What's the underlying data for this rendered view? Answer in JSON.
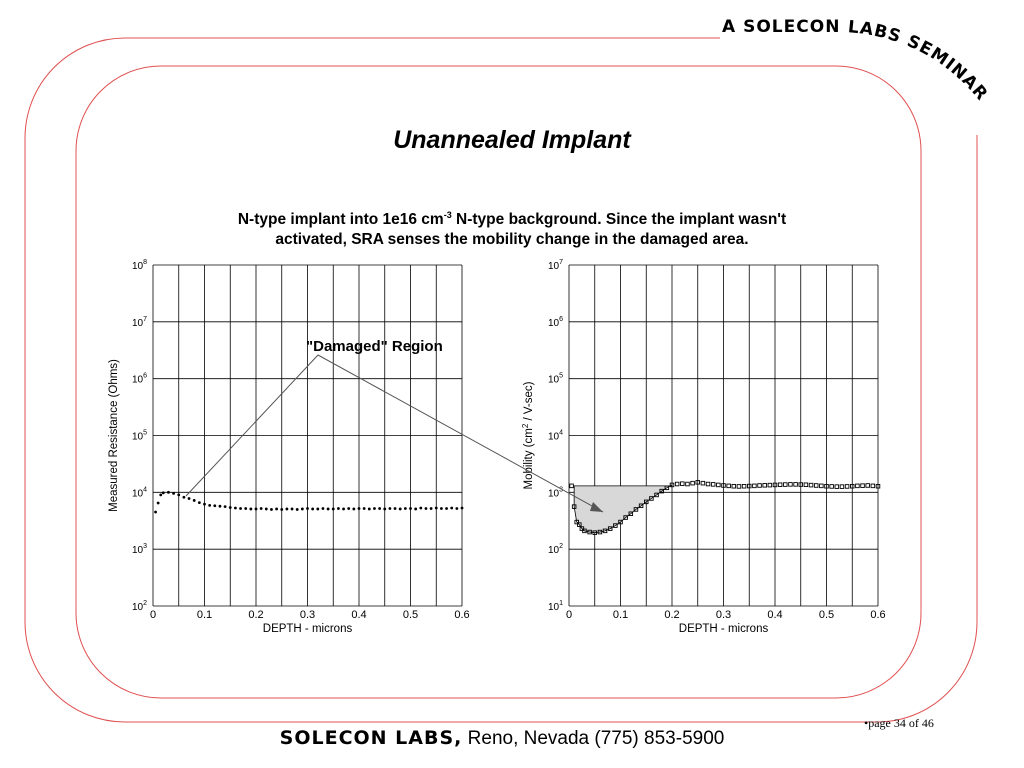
{
  "header": {
    "seminar_banner": "A SOLECON LABS SEMINAR"
  },
  "slide": {
    "title": "Unannealed Implant",
    "subtitle_line1_a": "N-type implant into 1e16 cm",
    "subtitle_line1_sup": "-3",
    "subtitle_line1_b": " N-type background. Since the implant wasn't",
    "subtitle_line2": "activated, SRA senses the mobility change in the damaged area.",
    "annotation": "\"Damaged\" Region"
  },
  "colors": {
    "frame": "#e05050",
    "region_fill": "#d8d8d8",
    "grid": "#000000"
  },
  "chart_data": [
    {
      "type": "scatter",
      "xlabel": "DEPTH - microns",
      "ylabel": "Measured Resistance (Ohms)",
      "xlim": [
        0,
        0.6
      ],
      "ylim_log10": [
        2,
        8
      ],
      "y_scale": "log",
      "x_ticks": [
        "0",
        "0.1",
        "0.2",
        "0.3",
        "0.4",
        "0.5",
        "0.6"
      ],
      "y_tick_exponents": [
        "2",
        "3",
        "4",
        "5",
        "6",
        "7",
        "8"
      ],
      "grid": true,
      "series": [
        {
          "points": [
            [
              0.005,
              4500.0
            ],
            [
              0.01,
              6500.0
            ],
            [
              0.015,
              9000.0
            ],
            [
              0.02,
              9800.0
            ],
            [
              0.03,
              10000.0
            ],
            [
              0.04,
              9600.0
            ],
            [
              0.05,
              9000.0
            ],
            [
              0.06,
              8200.0
            ],
            [
              0.07,
              7800.0
            ],
            [
              0.08,
              7200.0
            ],
            [
              0.09,
              6600.0
            ],
            [
              0.1,
              6200.0
            ],
            [
              0.11,
              5900.0
            ],
            [
              0.12,
              5800.0
            ],
            [
              0.13,
              5700.0
            ],
            [
              0.14,
              5600.0
            ],
            [
              0.15,
              5400.0
            ],
            [
              0.16,
              5300.0
            ],
            [
              0.17,
              5200.0
            ],
            [
              0.18,
              5200.0
            ],
            [
              0.19,
              5100.0
            ],
            [
              0.2,
              5100.0
            ],
            [
              0.21,
              5200.0
            ],
            [
              0.22,
              5100.0
            ],
            [
              0.23,
              5000.0
            ],
            [
              0.24,
              5100.0
            ],
            [
              0.25,
              5000.0
            ],
            [
              0.26,
              5100.0
            ],
            [
              0.27,
              5100.0
            ],
            [
              0.28,
              5000.0
            ],
            [
              0.29,
              5100.0
            ],
            [
              0.3,
              5200.0
            ],
            [
              0.31,
              5100.0
            ],
            [
              0.32,
              5100.0
            ],
            [
              0.33,
              5200.0
            ],
            [
              0.34,
              5100.0
            ],
            [
              0.35,
              5100.0
            ],
            [
              0.36,
              5200.0
            ],
            [
              0.37,
              5100.0
            ],
            [
              0.38,
              5200.0
            ],
            [
              0.39,
              5100.0
            ],
            [
              0.4,
              5200.0
            ],
            [
              0.41,
              5200.0
            ],
            [
              0.42,
              5100.0
            ],
            [
              0.43,
              5200.0
            ],
            [
              0.44,
              5200.0
            ],
            [
              0.45,
              5100.0
            ],
            [
              0.46,
              5200.0
            ],
            [
              0.47,
              5200.0
            ],
            [
              0.48,
              5100.0
            ],
            [
              0.49,
              5200.0
            ],
            [
              0.5,
              5200.0
            ],
            [
              0.51,
              5100.0
            ],
            [
              0.52,
              5300.0
            ],
            [
              0.53,
              5200.0
            ],
            [
              0.54,
              5200.0
            ],
            [
              0.55,
              5300.0
            ],
            [
              0.56,
              5200.0
            ],
            [
              0.57,
              5200.0
            ],
            [
              0.58,
              5300.0
            ],
            [
              0.59,
              5200.0
            ],
            [
              0.6,
              5300.0
            ]
          ]
        }
      ]
    },
    {
      "type": "scatter",
      "xlabel": "DEPTH - microns",
      "ylabel_a": "Mobility (cm",
      "ylabel_sup": "2",
      "ylabel_b": " / V-sec)",
      "xlim": [
        0,
        0.6
      ],
      "ylim_log10": [
        1,
        7
      ],
      "y_scale": "log",
      "x_ticks": [
        "0",
        "0.1",
        "0.2",
        "0.3",
        "0.4",
        "0.5",
        "0.6"
      ],
      "y_tick_exponents": [
        "1",
        "2",
        "3",
        "4",
        "5",
        "6",
        "7"
      ],
      "grid": true,
      "shaded_region": {
        "x_range": [
          0.01,
          0.2
        ],
        "top_value": 1300,
        "bottom_min": 190
      },
      "series": [
        {
          "points": [
            [
              0.005,
              1300
            ],
            [
              0.01,
              560
            ],
            [
              0.015,
              300
            ],
            [
              0.02,
              270
            ],
            [
              0.025,
              230
            ],
            [
              0.03,
              210
            ],
            [
              0.04,
              200
            ],
            [
              0.05,
              195
            ],
            [
              0.06,
              200
            ],
            [
              0.07,
              210
            ],
            [
              0.08,
              230
            ],
            [
              0.09,
              260
            ],
            [
              0.1,
              300
            ],
            [
              0.11,
              360
            ],
            [
              0.12,
              420
            ],
            [
              0.13,
              500
            ],
            [
              0.14,
              580
            ],
            [
              0.15,
              680
            ],
            [
              0.16,
              780
            ],
            [
              0.17,
              900
            ],
            [
              0.18,
              1050
            ],
            [
              0.19,
              1200
            ],
            [
              0.2,
              1350
            ],
            [
              0.21,
              1400
            ],
            [
              0.22,
              1420
            ],
            [
              0.23,
              1400
            ],
            [
              0.24,
              1450
            ],
            [
              0.25,
              1500
            ],
            [
              0.26,
              1450
            ],
            [
              0.27,
              1400
            ],
            [
              0.28,
              1380
            ],
            [
              0.29,
              1350
            ],
            [
              0.3,
              1320
            ],
            [
              0.31,
              1300
            ],
            [
              0.32,
              1280
            ],
            [
              0.33,
              1270
            ],
            [
              0.34,
              1280
            ],
            [
              0.35,
              1290
            ],
            [
              0.36,
              1300
            ],
            [
              0.37,
              1320
            ],
            [
              0.38,
              1330
            ],
            [
              0.39,
              1340
            ],
            [
              0.4,
              1350
            ],
            [
              0.41,
              1360
            ],
            [
              0.42,
              1370
            ],
            [
              0.43,
              1380
            ],
            [
              0.44,
              1380
            ],
            [
              0.45,
              1370
            ],
            [
              0.46,
              1360
            ],
            [
              0.47,
              1340
            ],
            [
              0.48,
              1320
            ],
            [
              0.49,
              1300
            ],
            [
              0.5,
              1280
            ],
            [
              0.51,
              1270
            ],
            [
              0.52,
              1260
            ],
            [
              0.53,
              1260
            ],
            [
              0.54,
              1270
            ],
            [
              0.55,
              1280
            ],
            [
              0.56,
              1300
            ],
            [
              0.57,
              1310
            ],
            [
              0.58,
              1320
            ],
            [
              0.59,
              1300
            ],
            [
              0.6,
              1280
            ]
          ]
        }
      ]
    }
  ],
  "footer": {
    "brand": "SOLECON LABS,",
    "location": " Reno, Nevada (775) 853-5900",
    "page_label": "•page 34 of 46"
  }
}
